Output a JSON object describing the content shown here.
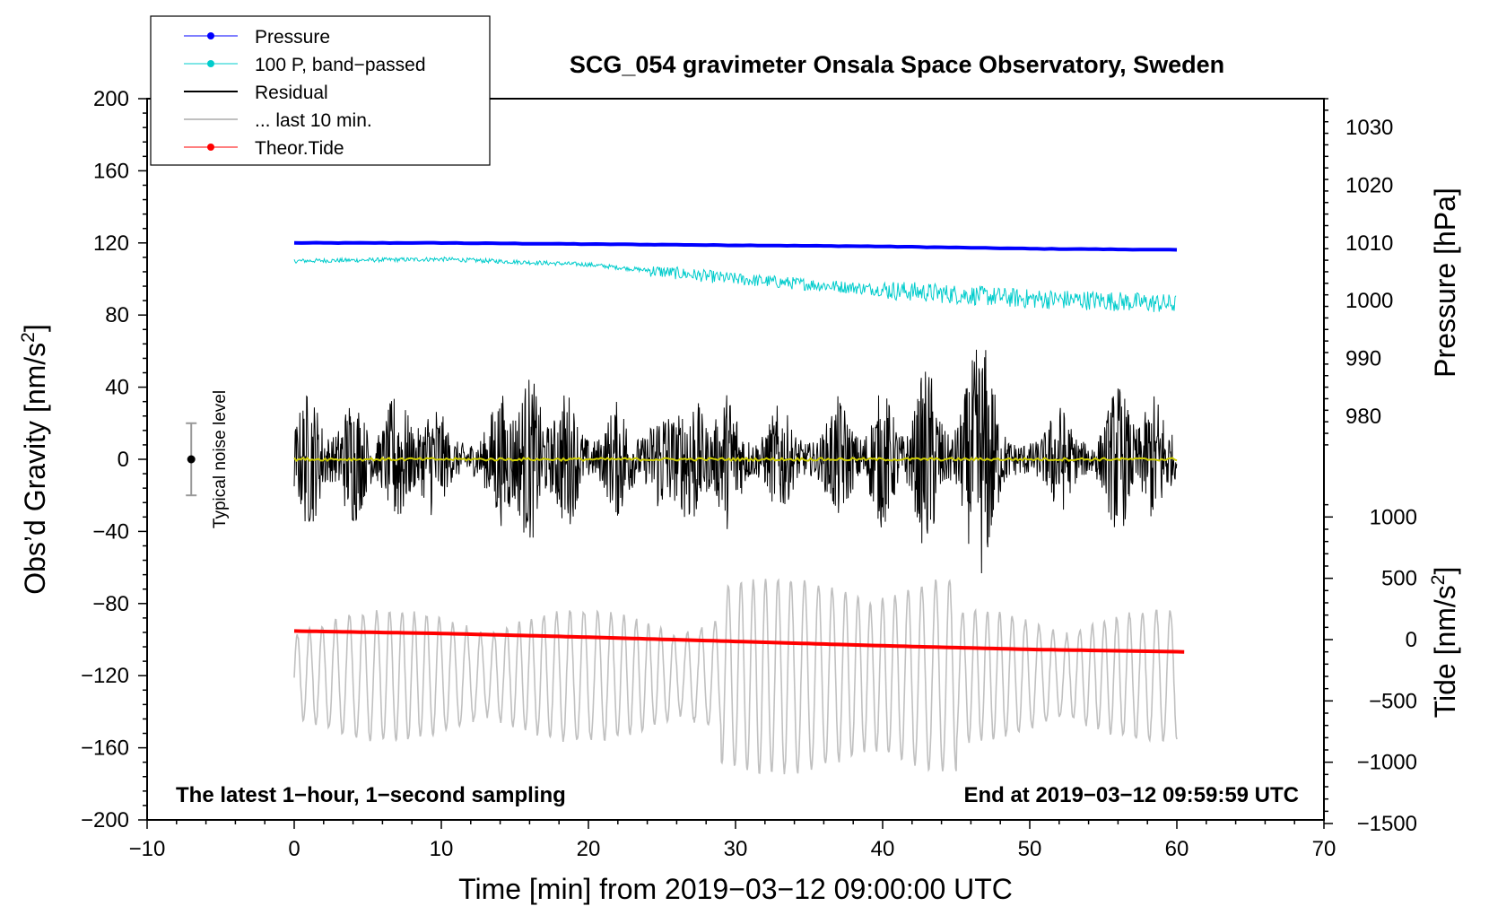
{
  "chart_data": {
    "type": "line",
    "title": "SCG_054 gravimeter Onsala Space Observatory, Sweden",
    "xlabel": "Time [min] from 2019−03−12 09:00:00 UTC",
    "ylabel_left": "Obs’d Gravity [nm/s",
    "ylabel_left_sup": "2",
    "ylabel_left_end": "]",
    "ylabel_right_top": "Pressure [hPa]",
    "ylabel_right_bottom": "Tide [nm/s",
    "ylabel_right_bottom_sup": "2",
    "ylabel_right_bottom_end": "]",
    "xlim": [
      -10,
      70
    ],
    "ylim_left": [
      -200,
      200
    ],
    "pressure_axis_ticks": [
      980,
      990,
      1000,
      1010,
      1020,
      1030
    ],
    "tide_axis_ticks": [
      -1500,
      -1000,
      -500,
      0,
      500,
      1000
    ],
    "x_ticks": [
      -10,
      0,
      10,
      20,
      30,
      40,
      50,
      60,
      70
    ],
    "x_tick_labels": [
      "−10",
      "0",
      "10",
      "20",
      "30",
      "40",
      "50",
      "60",
      "70"
    ],
    "y_ticks": [
      -200,
      -160,
      -120,
      -80,
      -40,
      0,
      40,
      80,
      120,
      160,
      200
    ],
    "y_tick_labels": [
      "−200",
      "−160",
      "−120",
      "−80",
      "−40",
      "0",
      "40",
      "80",
      "120",
      "160",
      "200"
    ],
    "pressure_tick_labels": [
      "980",
      "990",
      "1000",
      "1010",
      "1020",
      "1030"
    ],
    "tide_tick_labels": [
      "−1500",
      "−1000",
      "−500",
      "0",
      "500",
      "1000"
    ],
    "legend": [
      {
        "label": "Pressure",
        "color": "#0000ff",
        "marker": true
      },
      {
        "label": "100 P, band−passed",
        "color": "#00cccc",
        "marker": true
      },
      {
        "label": "Residual",
        "color": "#000000",
        "marker": false
      },
      {
        "label": "... last 10 min.",
        "color": "#c0c0c0",
        "marker": false
      },
      {
        "label": "Theor.Tide",
        "color": "#ff0000",
        "marker": true
      }
    ],
    "series": [
      {
        "name": "Pressure",
        "color": "#0000ff",
        "x": [
          0,
          10,
          20,
          30,
          40,
          50,
          60
        ],
        "values": [
          1010.0,
          1010.0,
          1009.8,
          1009.6,
          1009.4,
          1009.0,
          1008.8
        ],
        "axis": "pressure"
      },
      {
        "name": "100 P, band-passed",
        "color": "#00cccc",
        "x": [
          0,
          10,
          20,
          25,
          30,
          40,
          50,
          55,
          60
        ],
        "values": [
          110,
          111,
          108,
          104,
          100,
          94,
          89,
          88,
          86
        ],
        "axis": "left"
      },
      {
        "name": "Residual",
        "color": "#000000",
        "x": [
          0,
          60
        ],
        "values": [
          0,
          0
        ],
        "axis": "left"
      },
      {
        "name": "... last 10 min.",
        "color": "#c0c0c0",
        "x": [
          0,
          60
        ],
        "values": [
          -120,
          -120
        ],
        "axis": "left"
      },
      {
        "name": "Theor.Tide",
        "color": "#ff0000",
        "x": [
          0,
          10,
          20,
          30,
          40,
          50,
          60.5
        ],
        "values": [
          70,
          50,
          20,
          -15,
          -50,
          -80,
          -100
        ],
        "axis": "tide"
      },
      {
        "name": "Smoothed residual",
        "color": "#cccc00",
        "x": [
          0,
          60
        ],
        "values": [
          0,
          0
        ],
        "axis": "left"
      }
    ],
    "noise_level": {
      "label": "Typical noise level",
      "center": 0,
      "half_range": 20,
      "x": -7
    }
  },
  "annotations": {
    "bottom_left": "The latest 1−hour, 1−second sampling",
    "bottom_right": "End at 2019−03−12 09:59:59 UTC"
  }
}
